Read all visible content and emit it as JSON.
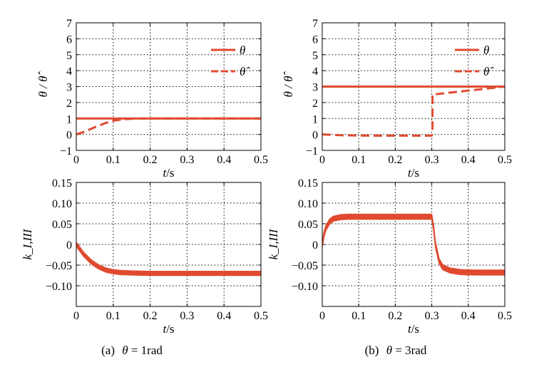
{
  "colors": {
    "series": "#e04a2f",
    "grid": "#000000",
    "axis": "#000000"
  },
  "captions": [
    {
      "prefix": "(a)",
      "symbol": "θ",
      "value": " = 1rad"
    },
    {
      "prefix": "(b)",
      "symbol": "θ",
      "value": " = 3rad"
    }
  ],
  "chart_data": [
    {
      "id": "a-top",
      "type": "line",
      "xlabel": {
        "italic": "t",
        "plain": "/s"
      },
      "ylabel": "θ / θ̂",
      "xlim": [
        0,
        0.5
      ],
      "ylim": [
        -1,
        7
      ],
      "xticks": [
        "0",
        "0.1",
        "0.2",
        "0.3",
        "0.4",
        "0.5"
      ],
      "yticks": [
        "−1",
        "0",
        "1",
        "2",
        "3",
        "4",
        "5",
        "6",
        "7"
      ],
      "legend_position": "top-right",
      "series": [
        {
          "name": "θ",
          "style": "solid",
          "x": [
            0,
            0.5
          ],
          "y": [
            1.0,
            1.0
          ]
        },
        {
          "name": "θ̂",
          "style": "dashed",
          "x": [
            0,
            0.02,
            0.05,
            0.08,
            0.1,
            0.13,
            0.16,
            0.2,
            0.3,
            0.5
          ],
          "y": [
            0,
            0.15,
            0.45,
            0.72,
            0.86,
            0.96,
            0.99,
            1.0,
            1.0,
            1.0
          ]
        }
      ]
    },
    {
      "id": "b-top",
      "type": "line",
      "xlabel": {
        "italic": "t",
        "plain": "/s"
      },
      "ylabel": "θ / θ̂",
      "xlim": [
        0,
        0.5
      ],
      "ylim": [
        -1,
        7
      ],
      "xticks": [
        "0",
        "0.1",
        "0.2",
        "0.3",
        "0.4",
        "0.5"
      ],
      "yticks": [
        "−1",
        "0",
        "1",
        "2",
        "3",
        "4",
        "5",
        "6",
        "7"
      ],
      "legend_position": "top-right",
      "series": [
        {
          "name": "θ",
          "style": "solid",
          "x": [
            0,
            0.5
          ],
          "y": [
            3.0,
            3.0
          ]
        },
        {
          "name": "θ̂",
          "style": "dashed",
          "x": [
            0,
            0.05,
            0.1,
            0.15,
            0.2,
            0.25,
            0.297,
            0.3,
            0.302,
            0.302,
            0.5
          ],
          "y": [
            0,
            -0.05,
            -0.07,
            -0.08,
            -0.08,
            -0.08,
            -0.08,
            -0.08,
            0.2,
            2.5,
            3.0
          ]
        }
      ]
    },
    {
      "id": "a-bottom",
      "type": "line",
      "xlabel": {
        "italic": "t",
        "plain": "/s"
      },
      "ylabel": "k_I,III",
      "xlim": [
        0,
        0.5
      ],
      "ylim": [
        -0.15,
        0.15
      ],
      "xticks": [
        "0",
        "0.1",
        "0.2",
        "0.3",
        "0.4",
        "0.5"
      ],
      "yticks": [
        "−0.10",
        "−0.05",
        "0",
        "0.05",
        "0.10",
        "0.15"
      ],
      "series": [
        {
          "name": "",
          "style": "band",
          "x": [
            0,
            0.01,
            0.02,
            0.04,
            0.06,
            0.08,
            0.1,
            0.12,
            0.15,
            0.2,
            0.3,
            0.5
          ],
          "y": [
            0,
            -0.012,
            -0.024,
            -0.042,
            -0.054,
            -0.062,
            -0.066,
            -0.068,
            -0.069,
            -0.07,
            -0.07,
            -0.07
          ],
          "band": 0.005
        }
      ]
    },
    {
      "id": "b-bottom",
      "type": "line",
      "xlabel": {
        "italic": "t",
        "plain": "/s"
      },
      "ylabel": "k_I,III",
      "xlim": [
        0,
        0.5
      ],
      "ylim": [
        -0.15,
        0.15
      ],
      "xticks": [
        "0",
        "0.1",
        "0.2",
        "0.3",
        "0.4",
        "0.5"
      ],
      "yticks": [
        "−0.10",
        "−0.05",
        "0",
        "0.05",
        "0.10",
        "0.15"
      ],
      "series": [
        {
          "name": "",
          "style": "band",
          "x": [
            0,
            0.005,
            0.01,
            0.02,
            0.03,
            0.05,
            0.07,
            0.1,
            0.2,
            0.3,
            0.305,
            0.31,
            0.32,
            0.33,
            0.35,
            0.38,
            0.42,
            0.5
          ],
          "y": [
            0,
            0.025,
            0.04,
            0.055,
            0.062,
            0.066,
            0.067,
            0.067,
            0.067,
            0.067,
            0.04,
            0.0,
            -0.04,
            -0.055,
            -0.063,
            -0.067,
            -0.068,
            -0.068
          ],
          "band": 0.006
        }
      ]
    }
  ]
}
